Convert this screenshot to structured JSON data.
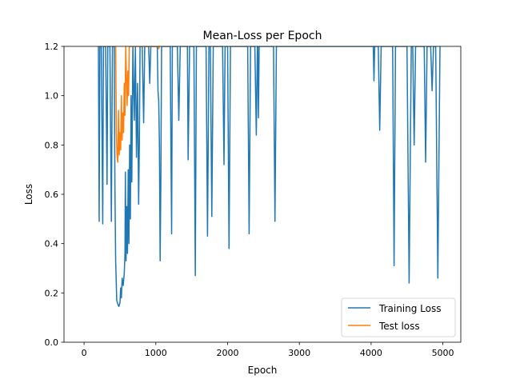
{
  "chart_data": {
    "type": "line",
    "title": "Mean-Loss per Epoch",
    "xlabel": "Epoch",
    "ylabel": "Loss",
    "xlim": [
      -280,
      5250
    ],
    "ylim": [
      0.0,
      1.2
    ],
    "xticks": [
      0,
      1000,
      2000,
      3000,
      4000,
      5000
    ],
    "xtick_labels": [
      "0",
      "1000",
      "2000",
      "3000",
      "4000",
      "5000"
    ],
    "yticks": [
      0.0,
      0.2,
      0.4,
      0.6,
      0.8,
      1.0,
      1.2
    ],
    "ytick_labels": [
      "0.0",
      "0.2",
      "0.4",
      "0.6",
      "0.8",
      "1.0",
      "1.2"
    ],
    "grid": false,
    "legend_position": "lower-right",
    "series": [
      {
        "name": "Training Loss",
        "color": "#1f77b4",
        "points": [
          [
            200,
            1.2
          ],
          [
            210,
            0.49
          ],
          [
            220,
            1.2
          ],
          [
            240,
            1.2
          ],
          [
            260,
            0.48
          ],
          [
            270,
            1.2
          ],
          [
            300,
            1.2
          ],
          [
            320,
            0.64
          ],
          [
            330,
            1.2
          ],
          [
            360,
            1.2
          ],
          [
            380,
            0.49
          ],
          [
            395,
            1.2
          ],
          [
            420,
            1.2
          ],
          [
            430,
            0.62
          ],
          [
            440,
            0.33
          ],
          [
            455,
            0.17
          ],
          [
            470,
            0.155
          ],
          [
            485,
            0.145
          ],
          [
            500,
            0.16
          ],
          [
            510,
            0.22
          ],
          [
            520,
            0.18
          ],
          [
            530,
            0.26
          ],
          [
            545,
            0.23
          ],
          [
            560,
            0.28
          ],
          [
            570,
            0.36
          ],
          [
            575,
            0.69
          ],
          [
            585,
            0.33
          ],
          [
            595,
            0.55
          ],
          [
            605,
            0.36
          ],
          [
            615,
            0.7
          ],
          [
            625,
            0.4
          ],
          [
            635,
            0.8
          ],
          [
            645,
            0.5
          ],
          [
            655,
            1.0
          ],
          [
            665,
            0.65
          ],
          [
            680,
            1.2
          ],
          [
            700,
            0.9
          ],
          [
            715,
            1.2
          ],
          [
            730,
            0.75
          ],
          [
            745,
            1.05
          ],
          [
            760,
            0.56
          ],
          [
            770,
            0.8
          ],
          [
            780,
            1.2
          ],
          [
            810,
            1.2
          ],
          [
            830,
            0.89
          ],
          [
            845,
            1.2
          ],
          [
            900,
            1.2
          ],
          [
            915,
            1.05
          ],
          [
            930,
            1.2
          ],
          [
            1020,
            1.2
          ],
          [
            1030,
            1.02
          ],
          [
            1040,
            0.98
          ],
          [
            1050,
            0.8
          ],
          [
            1060,
            0.33
          ],
          [
            1070,
            0.66
          ],
          [
            1080,
            1.2
          ],
          [
            1200,
            1.2
          ],
          [
            1210,
            0.8
          ],
          [
            1220,
            0.44
          ],
          [
            1230,
            1.2
          ],
          [
            1300,
            1.2
          ],
          [
            1320,
            0.9
          ],
          [
            1340,
            1.2
          ],
          [
            1440,
            1.2
          ],
          [
            1450,
            0.74
          ],
          [
            1460,
            0.96
          ],
          [
            1470,
            1.2
          ],
          [
            1530,
            1.2
          ],
          [
            1550,
            0.27
          ],
          [
            1565,
            1.2
          ],
          [
            1700,
            1.2
          ],
          [
            1720,
            0.43
          ],
          [
            1740,
            1.2
          ],
          [
            1760,
            1.2
          ],
          [
            1780,
            0.51
          ],
          [
            1800,
            1.2
          ],
          [
            1930,
            1.2
          ],
          [
            1950,
            0.72
          ],
          [
            1965,
            1.2
          ],
          [
            2000,
            1.2
          ],
          [
            2020,
            0.38
          ],
          [
            2040,
            1.2
          ],
          [
            2280,
            1.2
          ],
          [
            2300,
            0.44
          ],
          [
            2320,
            1.2
          ],
          [
            2380,
            1.2
          ],
          [
            2400,
            0.84
          ],
          [
            2415,
            1.2
          ],
          [
            2420,
            1.2
          ],
          [
            2430,
            0.91
          ],
          [
            2440,
            1.2
          ],
          [
            2640,
            1.2
          ],
          [
            2660,
            0.49
          ],
          [
            2680,
            1.2
          ],
          [
            4030,
            1.2
          ],
          [
            4040,
            1.06
          ],
          [
            4050,
            1.2
          ],
          [
            4100,
            1.2
          ],
          [
            4120,
            0.86
          ],
          [
            4140,
            1.2
          ],
          [
            4300,
            1.2
          ],
          [
            4320,
            0.31
          ],
          [
            4340,
            1.2
          ],
          [
            4500,
            1.2
          ],
          [
            4530,
            0.24
          ],
          [
            4560,
            1.2
          ],
          [
            4580,
            1.2
          ],
          [
            4600,
            0.8
          ],
          [
            4620,
            1.2
          ],
          [
            4740,
            1.2
          ],
          [
            4760,
            0.73
          ],
          [
            4780,
            1.2
          ],
          [
            4830,
            1.2
          ],
          [
            4850,
            1.02
          ],
          [
            4870,
            1.2
          ],
          [
            4900,
            1.2
          ],
          [
            4930,
            0.26
          ],
          [
            4960,
            1.2
          ]
        ]
      },
      {
        "name": "Test loss",
        "color": "#ff7f0e",
        "points": [
          [
            440,
            1.2
          ],
          [
            450,
            0.85
          ],
          [
            460,
            0.75
          ],
          [
            470,
            0.73
          ],
          [
            480,
            0.94
          ],
          [
            490,
            0.76
          ],
          [
            500,
            0.85
          ],
          [
            510,
            0.78
          ],
          [
            520,
            1.0
          ],
          [
            530,
            0.82
          ],
          [
            540,
            0.93
          ],
          [
            550,
            0.85
          ],
          [
            560,
            1.05
          ],
          [
            570,
            0.92
          ],
          [
            580,
            1.2
          ],
          [
            600,
            0.96
          ],
          [
            610,
            1.1
          ],
          [
            620,
            1.0
          ],
          [
            630,
            1.2
          ],
          [
            645,
            1.2
          ],
          [
            1030,
            1.2
          ],
          [
            1040,
            1.19
          ],
          [
            1050,
            1.2
          ]
        ]
      }
    ]
  }
}
